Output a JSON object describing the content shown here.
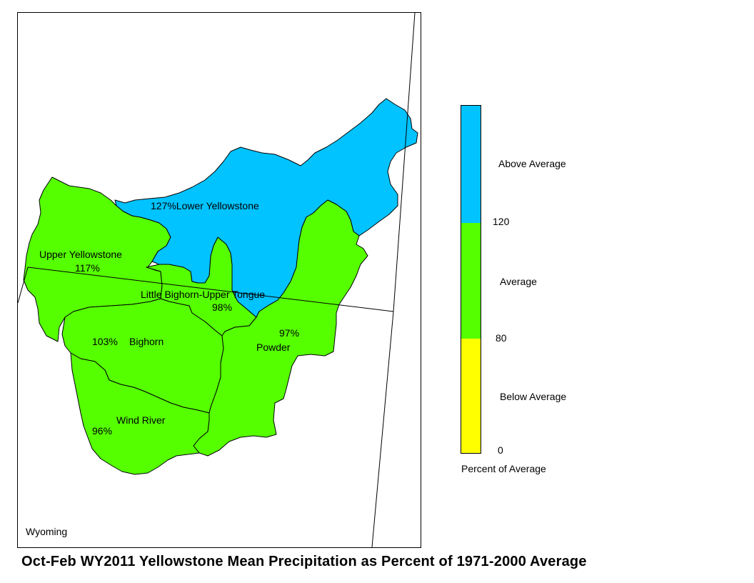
{
  "title": "Oct-Feb WY2011 Yellowstone Mean Precipitation as Percent of 1971-2000 Average",
  "state_label": "Wyoming",
  "colors": {
    "above": "#00c3ff",
    "average": "#55ff00",
    "below": "#ffff00"
  },
  "basins": [
    {
      "name": "Lower Yellowstone",
      "label": "127%Lower Yellowstone",
      "percent": 127,
      "category": "above"
    },
    {
      "name": "Upper Yellowstone",
      "label_name": "Upper Yellowstone",
      "label_pct": "117%",
      "percent": 117,
      "category": "average"
    },
    {
      "name": "Little Bighorn-Upper Tongue",
      "label_name": "Little Bighorn-Upper Tongue",
      "label_pct": "98%",
      "percent": 98,
      "category": "average"
    },
    {
      "name": "Bighorn",
      "label_pct": "103%",
      "label_name": "Bighorn",
      "percent": 103,
      "category": "average"
    },
    {
      "name": "Powder",
      "label_pct": "97%",
      "label_name": "Powder",
      "percent": 97,
      "category": "average"
    },
    {
      "name": "Wind River",
      "label_name": "Wind River",
      "label_pct": "96%",
      "percent": 96,
      "category": "average"
    }
  ],
  "legend": {
    "title": "Percent of Average",
    "items": [
      {
        "label": "Above Average",
        "range": [
          120,
          null
        ],
        "color": "#00c3ff"
      },
      {
        "label": "Average",
        "range": [
          80,
          120
        ],
        "color": "#55ff00"
      },
      {
        "label": "Below Average",
        "range": [
          0,
          80
        ],
        "color": "#ffff00"
      }
    ],
    "breaks": [
      "120",
      "80",
      "0"
    ]
  }
}
